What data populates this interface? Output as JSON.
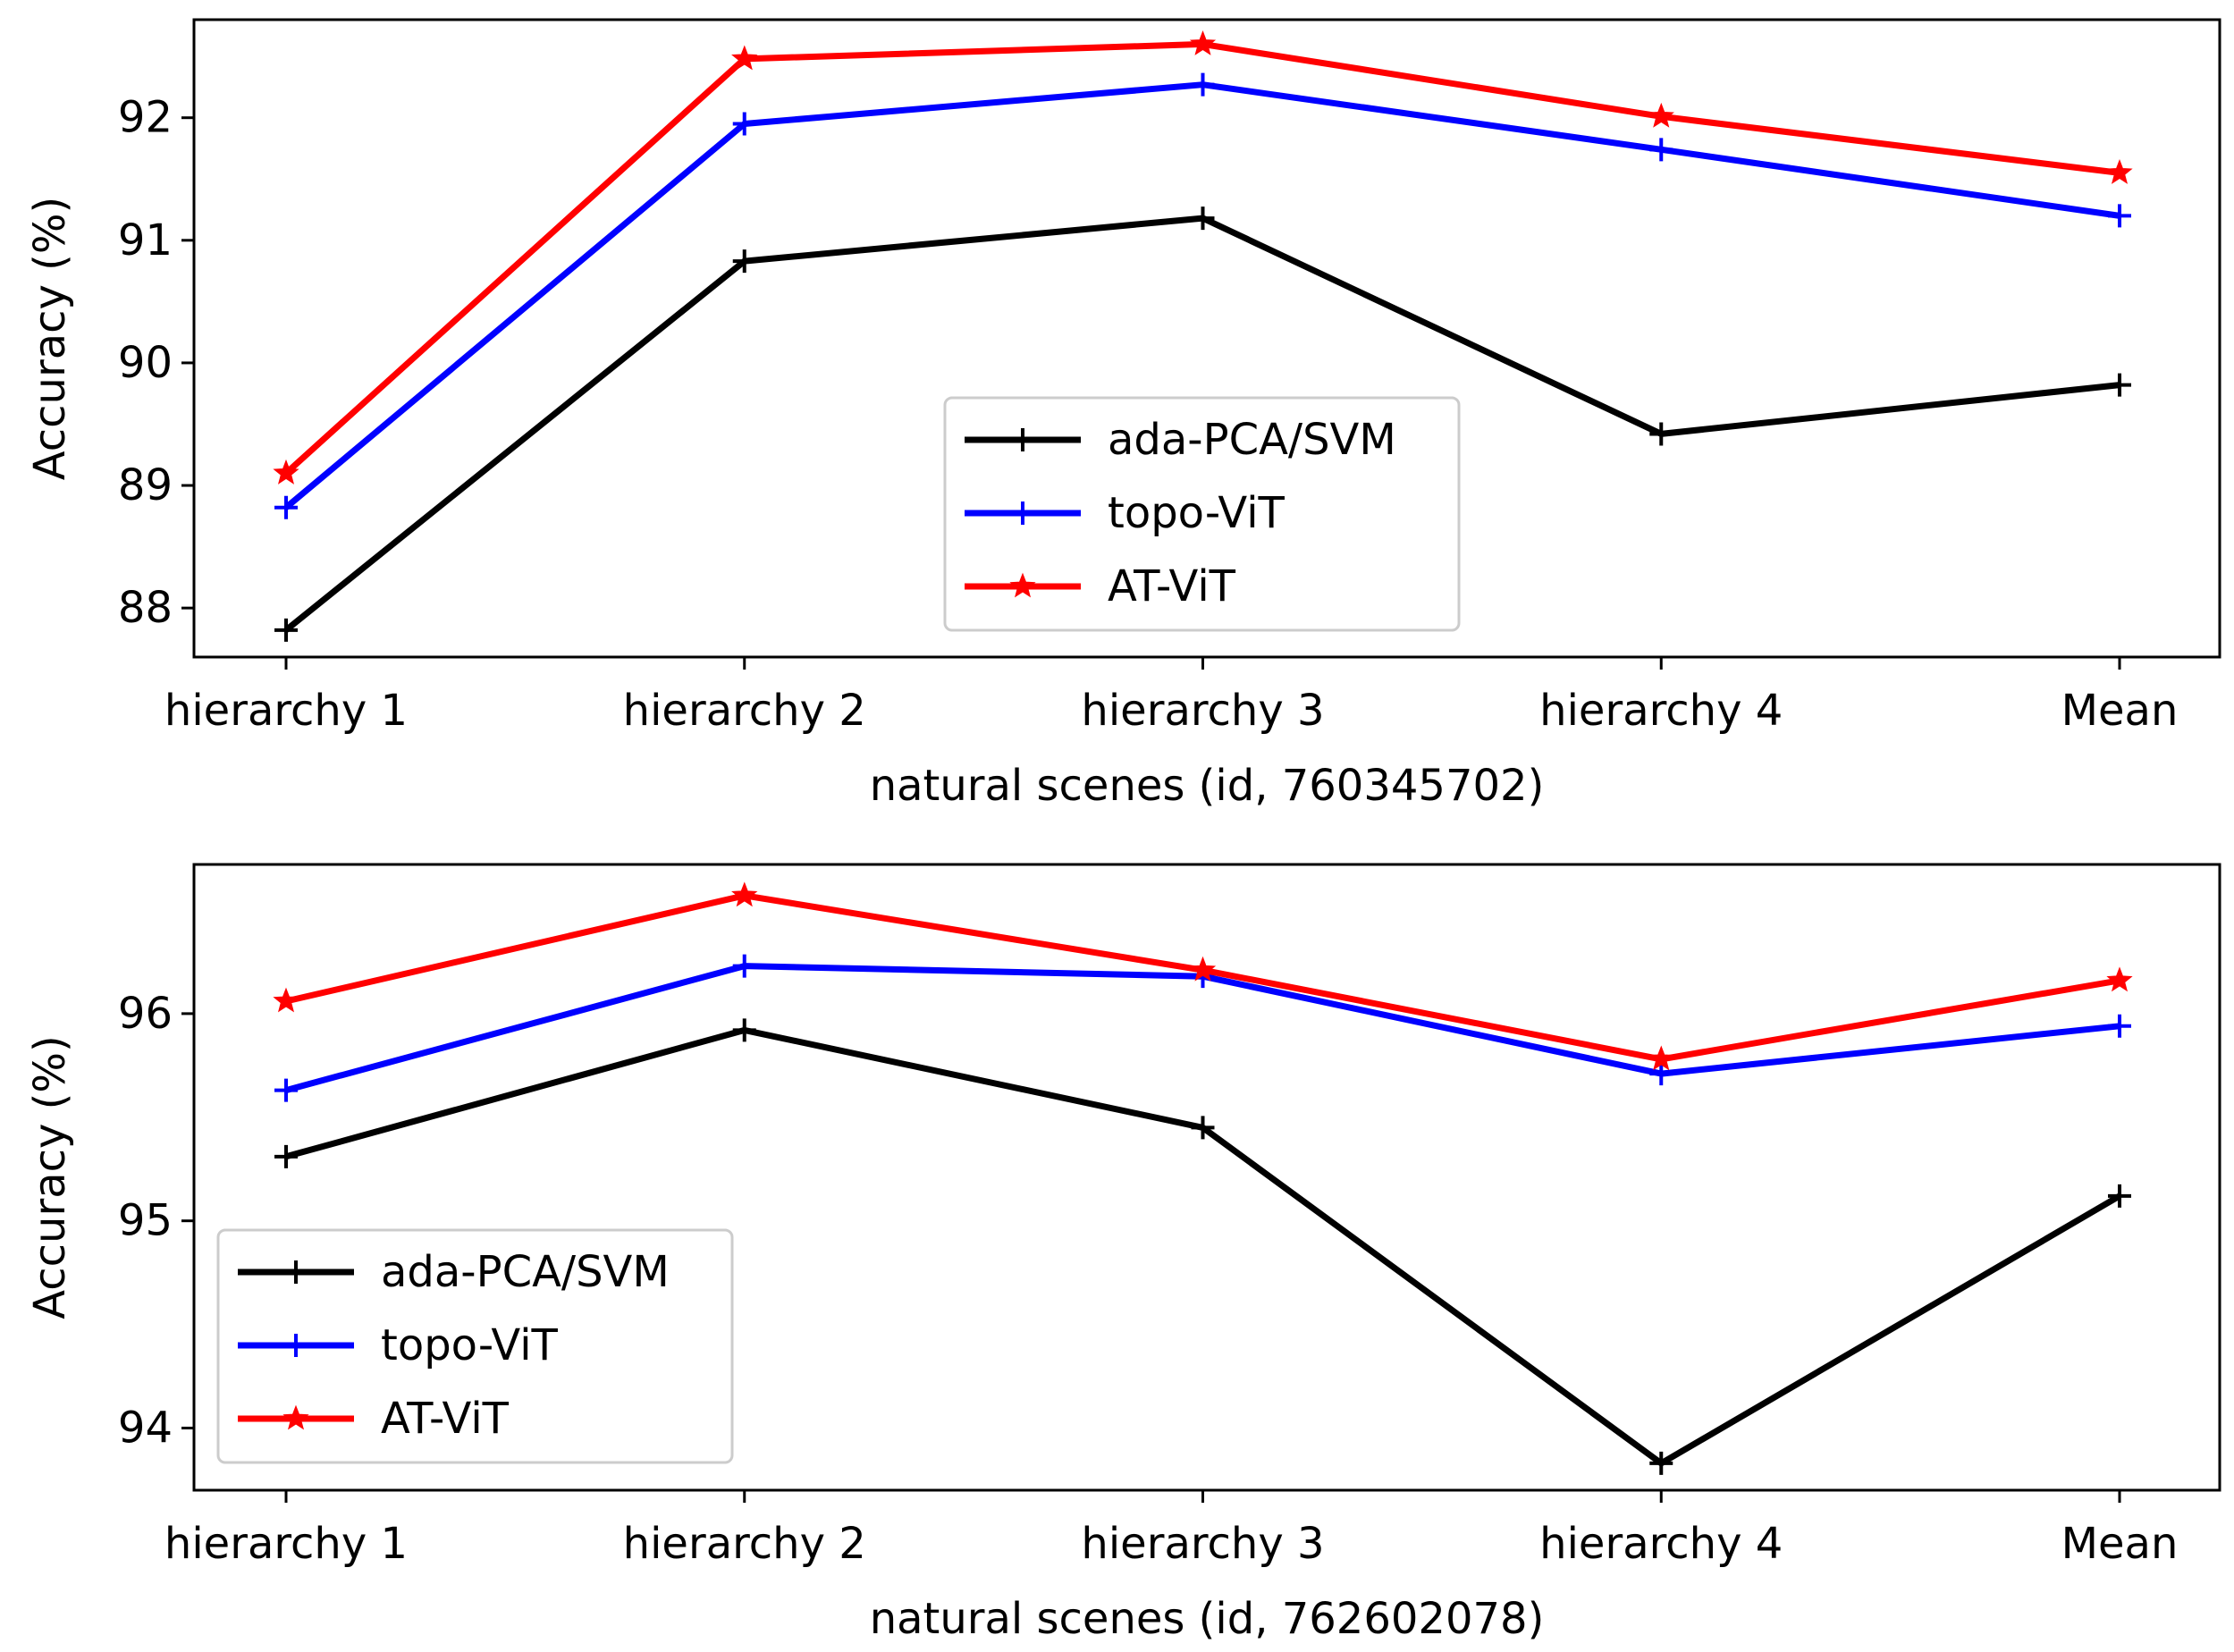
{
  "chart_data": [
    {
      "type": "line",
      "xlabel": "natural scenes (id, 760345702)",
      "ylabel": "Accuracy (%)",
      "categories": [
        "hierarchy 1",
        "hierarchy 2",
        "hierarchy 3",
        "hierarchy 4",
        "Mean"
      ],
      "ylim": [
        87.6,
        92.8
      ],
      "yticks": [
        88,
        89,
        90,
        91,
        92
      ],
      "legend_position": "center",
      "series": [
        {
          "name": "ada-PCA/SVM",
          "color": "#000000",
          "marker": "plus",
          "values": [
            87.82,
            90.83,
            91.18,
            89.42,
            89.82
          ]
        },
        {
          "name": "topo-ViT",
          "color": "#0000ff",
          "marker": "plus",
          "values": [
            88.82,
            91.95,
            92.27,
            91.74,
            91.2
          ]
        },
        {
          "name": "AT-ViT",
          "color": "#ff0000",
          "marker": "star",
          "values": [
            89.1,
            92.48,
            92.6,
            92.01,
            91.55
          ]
        }
      ]
    },
    {
      "type": "line",
      "xlabel": "natural scenes (id, 762602078)",
      "ylabel": "Accuracy (%)",
      "categories": [
        "hierarchy 1",
        "hierarchy 2",
        "hierarchy 3",
        "hierarchy 4",
        "Mean"
      ],
      "ylim": [
        93.7,
        96.72
      ],
      "yticks": [
        94,
        95,
        96
      ],
      "legend_position": "lower left",
      "series": [
        {
          "name": "ada-PCA/SVM",
          "color": "#000000",
          "marker": "plus",
          "values": [
            95.31,
            95.92,
            95.45,
            93.83,
            95.12
          ]
        },
        {
          "name": "topo-ViT",
          "color": "#0000ff",
          "marker": "plus",
          "values": [
            95.63,
            96.23,
            96.18,
            95.71,
            95.94
          ]
        },
        {
          "name": "AT-ViT",
          "color": "#ff0000",
          "marker": "star",
          "values": [
            96.06,
            96.57,
            96.21,
            95.78,
            96.16
          ]
        }
      ]
    }
  ]
}
